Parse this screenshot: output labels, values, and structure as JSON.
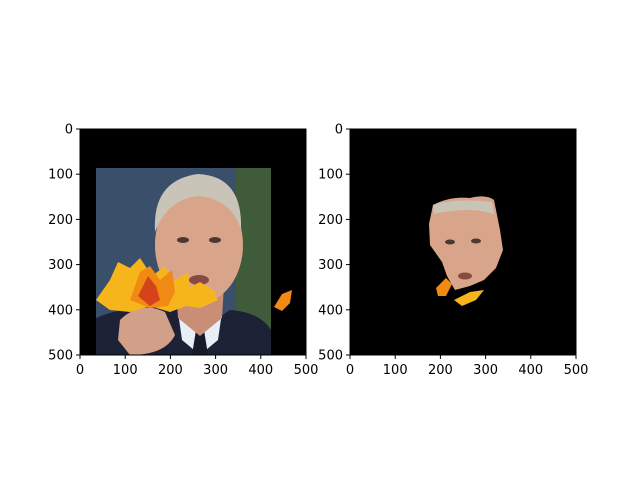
{
  "figure": {
    "background": "#ffffff"
  },
  "chart_data": [
    {
      "type": "image",
      "content": "photo-with-occlusion",
      "xlim": [
        0,
        500
      ],
      "ylim": [
        500,
        0
      ],
      "xticks": [
        0,
        100,
        200,
        300,
        400,
        500
      ],
      "yticks": [
        0,
        100,
        200,
        300,
        400,
        500
      ],
      "xtick_labels": [
        "0",
        "100",
        "200",
        "300",
        "400",
        "500"
      ],
      "ytick_labels": [
        "0",
        "100",
        "200",
        "300",
        "400",
        "500"
      ],
      "colors": {
        "background": "#000000",
        "suit": "#1c2136",
        "leaf_orange": "#f08a12",
        "leaf_yellow": "#f7b51c",
        "leaf_red": "#d4431a",
        "skin": "#d9a58a",
        "hair": "#c9c4b8"
      }
    },
    {
      "type": "image",
      "content": "segmentation-mask",
      "xlim": [
        0,
        500
      ],
      "ylim": [
        500,
        0
      ],
      "xticks": [
        0,
        100,
        200,
        300,
        400,
        500
      ],
      "yticks": [
        0,
        100,
        200,
        300,
        400,
        500
      ],
      "xtick_labels": [
        "0",
        "100",
        "200",
        "300",
        "400",
        "500"
      ],
      "ytick_labels": [
        "0",
        "100",
        "200",
        "300",
        "400",
        "500"
      ],
      "colors": {
        "background": "#000000",
        "skin": "#d9a58a",
        "leaf_orange": "#f08a12"
      }
    }
  ]
}
